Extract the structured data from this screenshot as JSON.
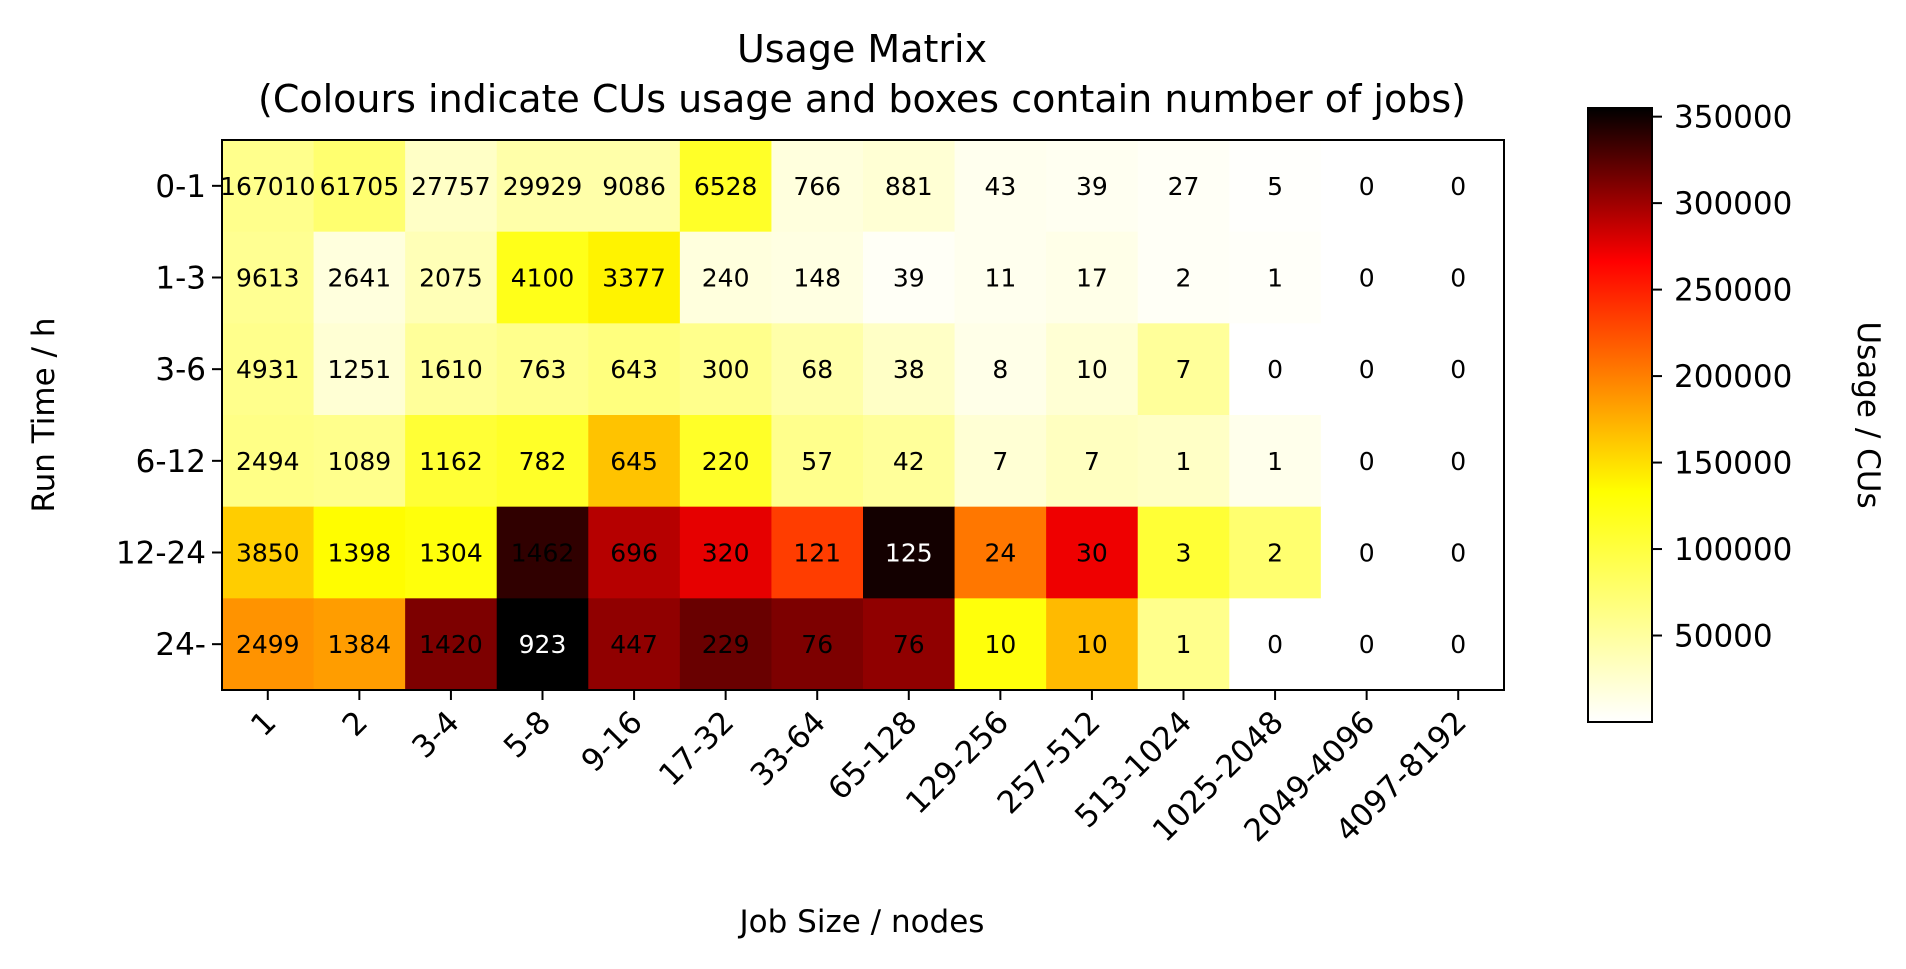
{
  "chart_data": {
    "type": "heatmap",
    "title": "Usage Matrix",
    "subtitle": "(Colours indicate CUs usage and boxes contain number of jobs)",
    "xlabel": "Job Size / nodes",
    "ylabel": "Run Time / h",
    "colorbar_label": "Usage / CUs",
    "colormap": "hot_r",
    "color_range": [
      0,
      355000
    ],
    "colorbar_ticks": [
      50000,
      100000,
      150000,
      200000,
      250000,
      300000,
      350000
    ],
    "x_categories": [
      "1",
      "2",
      "3-4",
      "5-8",
      "9-16",
      "17-32",
      "33-64",
      "65-128",
      "129-256",
      "257-512",
      "513-1024",
      "1025-2048",
      "2049-4096",
      "4097-8192"
    ],
    "y_categories": [
      "0-1",
      "1-3",
      "3-6",
      "6-12",
      "12-24",
      "24-"
    ],
    "job_counts": [
      [
        167010,
        61705,
        27757,
        29929,
        9086,
        6528,
        766,
        881,
        43,
        39,
        27,
        5,
        0,
        0
      ],
      [
        9613,
        2641,
        2075,
        4100,
        3377,
        240,
        148,
        39,
        11,
        17,
        2,
        1,
        0,
        0
      ],
      [
        4931,
        1251,
        1610,
        763,
        643,
        300,
        68,
        38,
        8,
        10,
        7,
        0,
        0,
        0
      ],
      [
        2494,
        1089,
        1162,
        782,
        645,
        220,
        57,
        42,
        7,
        7,
        1,
        1,
        0,
        0
      ],
      [
        3850,
        1398,
        1304,
        1462,
        696,
        320,
        121,
        125,
        24,
        30,
        3,
        2,
        0,
        0
      ],
      [
        2499,
        1384,
        1420,
        923,
        447,
        229,
        76,
        76,
        10,
        10,
        1,
        0,
        0,
        0
      ]
    ],
    "usage": [
      [
        40000,
        50000,
        20000,
        30000,
        30000,
        75000,
        12000,
        15000,
        6000,
        5000,
        3000,
        1000,
        0,
        0
      ],
      [
        38000,
        12000,
        25000,
        80000,
        95000,
        12000,
        10000,
        3000,
        6000,
        8000,
        3000,
        2000,
        0,
        0
      ],
      [
        40000,
        15000,
        35000,
        40000,
        45000,
        40000,
        30000,
        20000,
        8000,
        15000,
        35000,
        0,
        0,
        0
      ],
      [
        42000,
        40000,
        70000,
        75000,
        120000,
        75000,
        40000,
        35000,
        15000,
        22000,
        20000,
        7000,
        0,
        0
      ],
      [
        115000,
        90000,
        85000,
        330000,
        260000,
        235000,
        190000,
        345000,
        160000,
        230000,
        70000,
        50000,
        0,
        0
      ],
      [
        145000,
        140000,
        290000,
        355000,
        280000,
        300000,
        290000,
        280000,
        85000,
        125000,
        40000,
        0,
        0,
        0
      ]
    ]
  }
}
